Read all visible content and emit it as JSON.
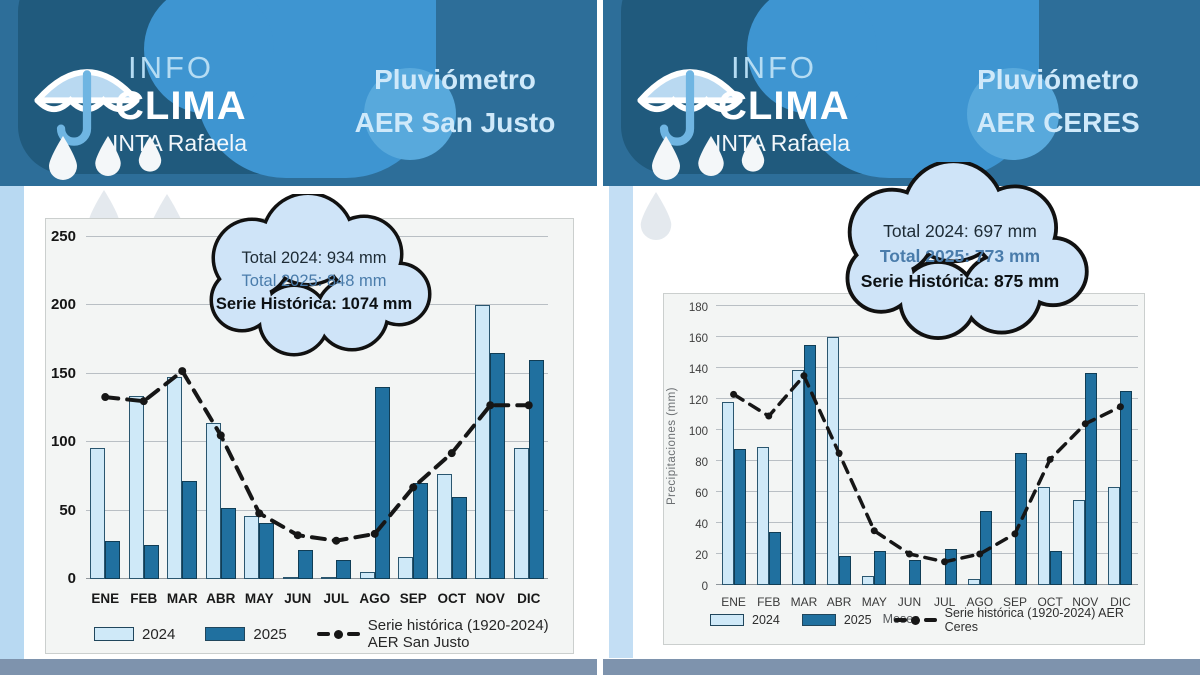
{
  "page": {
    "background": "#ffffff",
    "footer_color": "#7e93ad",
    "banner_color": "#2d6e99",
    "stripe_color_left": "#b8d9f2",
    "stripe_color_right": "#c3def4"
  },
  "panels": [
    {
      "station": "AER San Justo",
      "logo": {
        "top": "INFO",
        "main": "CLIMA",
        "sub": "INTA Rafaela"
      },
      "title": [
        "Pluviómetro",
        "AER San Justo"
      ],
      "annotation": {
        "total_2024": "Total 2024: 934 mm",
        "total_2025": "Total 2025: 848 mm",
        "serie": "Serie Histórica: 1074 mm"
      }
    },
    {
      "station": "AER CERES",
      "logo": {
        "top": "INFO",
        "main": "CLIMA",
        "sub": "INTA Rafaela"
      },
      "title": [
        "Pluviómetro",
        "AER CERES"
      ],
      "annotation": {
        "total_2024": "Total 2024: 697 mm",
        "total_2025": "Total 2025:  773 mm",
        "serie": "Serie Histórica: 875 mm"
      }
    }
  ],
  "chart_data": [
    {
      "type": "bar",
      "title": "Pluviómetro AER San Justo",
      "categories": [
        "ENE",
        "FEB",
        "MAR",
        "ABR",
        "MAY",
        "JUN",
        "JUL",
        "AGO",
        "SEP",
        "OCT",
        "NOV",
        "DIC"
      ],
      "series": [
        {
          "name": "2024",
          "type": "bar",
          "color": "#cfe9f8",
          "values": [
            96,
            134,
            148,
            114,
            46,
            1,
            1,
            5,
            16,
            77,
            200,
            96
          ]
        },
        {
          "name": "2025",
          "type": "bar",
          "color": "#20709f",
          "values": [
            28,
            25,
            72,
            52,
            41,
            21,
            14,
            140,
            70,
            60,
            165,
            160
          ]
        },
        {
          "name": "Serie histórica (1920-2024) AER San Justo",
          "type": "line",
          "color": "#161616",
          "values": [
            133,
            130,
            152,
            105,
            48,
            32,
            28,
            33,
            67,
            92,
            127,
            127
          ]
        }
      ],
      "ylim": [
        0,
        250
      ],
      "ytick_step": 50,
      "xlabel": "",
      "ylabel": "",
      "grid": true,
      "legend_position": "bottom",
      "totals": {
        "total_2024_mm": 934,
        "total_2025_mm": 848,
        "serie_historica_mm": 1074
      }
    },
    {
      "type": "bar",
      "title": "Pluviómetro AER CERES",
      "categories": [
        "ENE",
        "FEB",
        "MAR",
        "ABR",
        "MAY",
        "JUN",
        "JUL",
        "AGO",
        "SEP",
        "OCT",
        "NOV",
        "DIC"
      ],
      "series": [
        {
          "name": "2024",
          "type": "bar",
          "color": "#cfe9f8",
          "values": [
            118,
            89,
            139,
            160,
            6,
            0,
            0,
            4,
            0,
            63,
            55,
            63
          ]
        },
        {
          "name": "2025",
          "type": "bar",
          "color": "#20709f",
          "values": [
            88,
            34,
            155,
            19,
            22,
            16,
            23,
            48,
            85,
            22,
            137,
            125
          ]
        },
        {
          "name": "Serie histórica (1920-2024) AER Ceres",
          "type": "line",
          "color": "#161616",
          "values": [
            123,
            109,
            135,
            85,
            35,
            20,
            15,
            20,
            33,
            81,
            104,
            115
          ]
        }
      ],
      "ylim": [
        0,
        180
      ],
      "ytick_step": 20,
      "xlabel": "Meses",
      "ylabel": "Precipitaciones (mm)",
      "grid": true,
      "legend_position": "bottom",
      "totals": {
        "total_2024_mm": 697,
        "total_2025_mm": 773,
        "serie_historica_mm": 875
      }
    }
  ]
}
